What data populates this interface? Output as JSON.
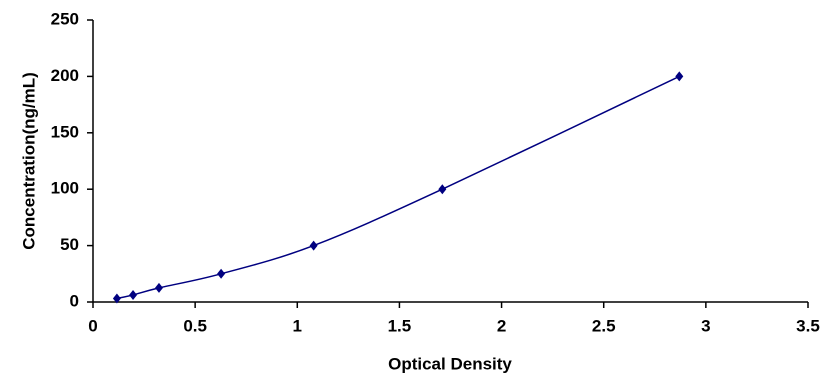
{
  "chart_data": {
    "type": "scatter",
    "x_label": "Optical Density",
    "y_label": "Concentration(ng/mL)",
    "series": [
      {
        "color": "#000080",
        "x": [
          0.117,
          0.196,
          0.323,
          0.627,
          1.08,
          1.71,
          2.87
        ],
        "values": [
          3.125,
          6.25,
          12.5,
          25,
          50,
          100,
          200
        ]
      }
    ],
    "smooth_line": true,
    "xlim": [
      0,
      3.5
    ],
    "xticks": [
      0,
      0.5,
      1,
      1.5,
      2,
      2.5,
      3,
      3.5
    ],
    "ylim": [
      0,
      250
    ],
    "yticks": [
      0,
      50,
      100,
      150,
      200,
      250
    ],
    "grid": false
  }
}
